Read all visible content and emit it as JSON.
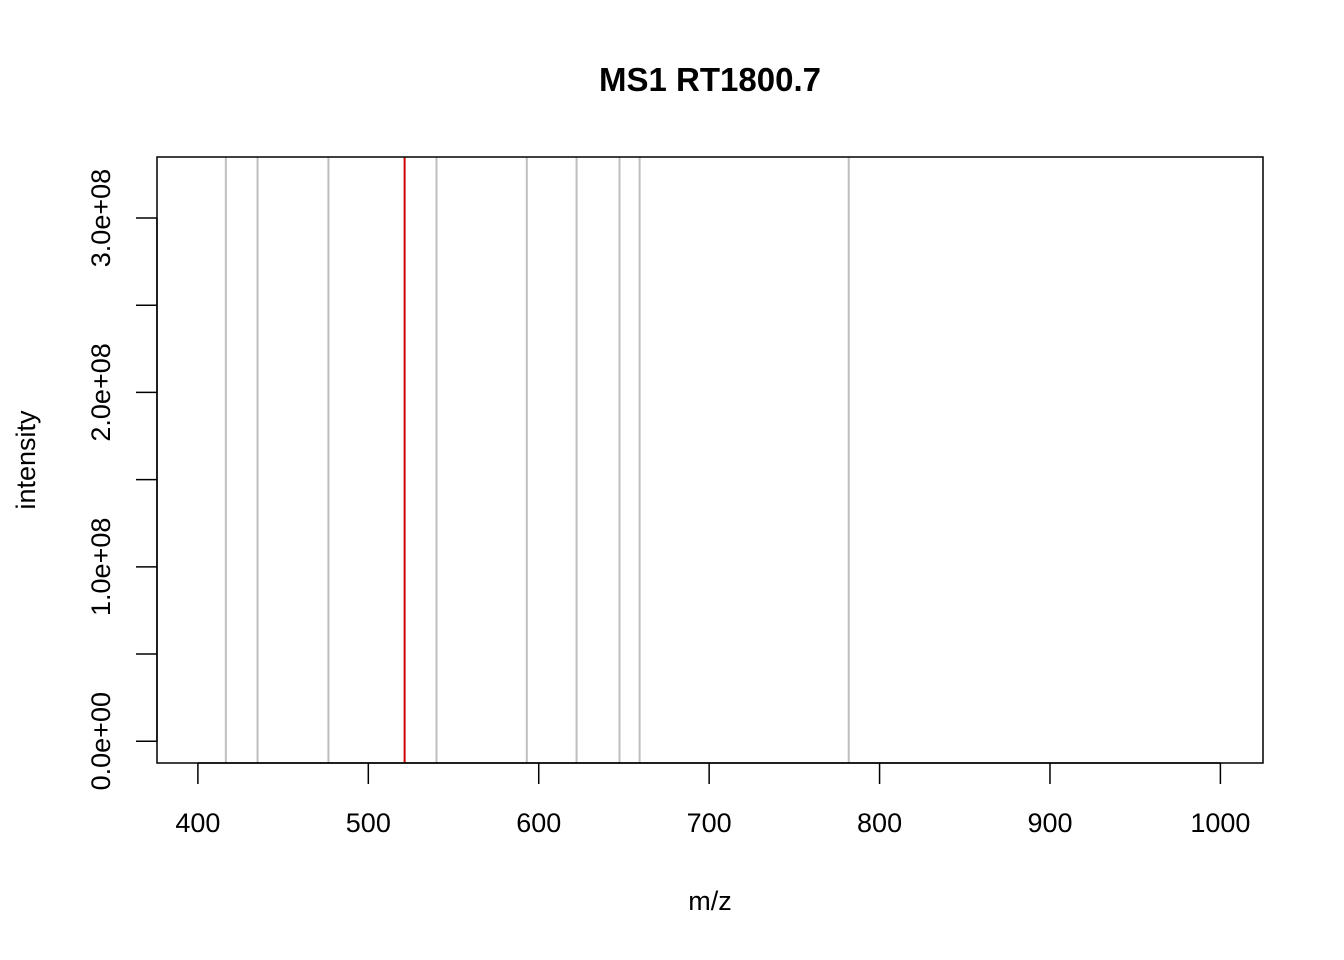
{
  "chart_data": {
    "type": "bar",
    "title": "MS1 RT1800.7",
    "xlabel": "m/z",
    "ylabel": "intensity",
    "xlim": [
      376,
      1025
    ],
    "ylim": [
      -12500000,
      335000000
    ],
    "x_ticks": [
      400,
      500,
      600,
      700,
      800,
      900,
      1000
    ],
    "x_tick_labels": [
      "400",
      "500",
      "600",
      "700",
      "800",
      "900",
      "1000"
    ],
    "y_ticks": [
      0,
      50000000,
      100000000,
      150000000,
      200000000,
      250000000,
      300000000
    ],
    "y_tick_labels": [
      "0.0e+00",
      "",
      "1.0e+08",
      "",
      "2.0e+08",
      "",
      "3.0e+08"
    ],
    "grid": false,
    "series": [
      {
        "color": "#bebebe",
        "values": [
          {
            "x": 416.4,
            "y": 335000000
          },
          {
            "x": 435.0,
            "y": 335000000
          },
          {
            "x": 476.6,
            "y": 335000000
          },
          {
            "x": 540.0,
            "y": 335000000
          },
          {
            "x": 593.0,
            "y": 335000000
          },
          {
            "x": 622.2,
            "y": 335000000
          },
          {
            "x": 647.4,
            "y": 335000000
          },
          {
            "x": 659.2,
            "y": 335000000
          },
          {
            "x": 781.9,
            "y": 335000000
          }
        ]
      },
      {
        "color": "#cc0000",
        "values": [
          {
            "x": 521.3,
            "y": 335000000
          }
        ]
      }
    ]
  }
}
